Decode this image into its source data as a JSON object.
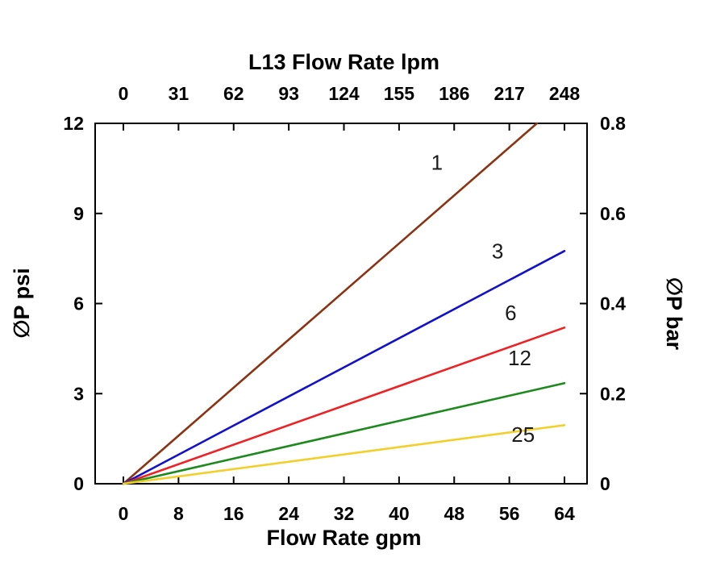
{
  "chart_data": {
    "type": "line",
    "axis_color": "#000000",
    "background": "#ffffff",
    "top_axis": {
      "title": "L13 Flow Rate lpm",
      "ticks": [
        "0",
        "31",
        "62",
        "93",
        "124",
        "155",
        "186",
        "217",
        "248"
      ]
    },
    "bottom_axis": {
      "title": "Flow Rate gpm",
      "ticks": [
        "0",
        "8",
        "16",
        "24",
        "32",
        "40",
        "48",
        "56",
        "64"
      ]
    },
    "left_axis": {
      "title": "∅P psi",
      "ticks": [
        "0",
        "3",
        "6",
        "9",
        "12"
      ]
    },
    "right_axis": {
      "title": "∅P bar",
      "ticks": [
        "0",
        "0.2",
        "0.4",
        "0.6",
        "0.8"
      ]
    },
    "xlim": [
      0,
      64
    ],
    "ylim": [
      0,
      12
    ],
    "grid": false,
    "legend": "inline-labels",
    "series": [
      {
        "name": "1",
        "color": "#8c3314",
        "points": [
          [
            0,
            0
          ],
          [
            60,
            12
          ]
        ],
        "label": {
          "text": "1",
          "x": 45.5,
          "y": 10.45
        }
      },
      {
        "name": "3",
        "color": "#1111cd",
        "points": [
          [
            0,
            0
          ],
          [
            64,
            7.75
          ]
        ],
        "label": {
          "text": "3",
          "x": 54.3,
          "y": 7.5
        }
      },
      {
        "name": "6",
        "color": "#ee2224",
        "points": [
          [
            0,
            0
          ],
          [
            64,
            5.2
          ]
        ],
        "label": {
          "text": "6",
          "x": 56.2,
          "y": 5.45
        }
      },
      {
        "name": "12",
        "color": "#1e8a1e",
        "points": [
          [
            0,
            0
          ],
          [
            64,
            3.35
          ]
        ],
        "label": {
          "text": "12",
          "x": 57.5,
          "y": 3.95
        }
      },
      {
        "name": "25",
        "color": "#f2cf2a",
        "points": [
          [
            0,
            0
          ],
          [
            64,
            1.95
          ]
        ],
        "label": {
          "text": "25",
          "x": 58,
          "y": 1.4
        }
      }
    ]
  }
}
